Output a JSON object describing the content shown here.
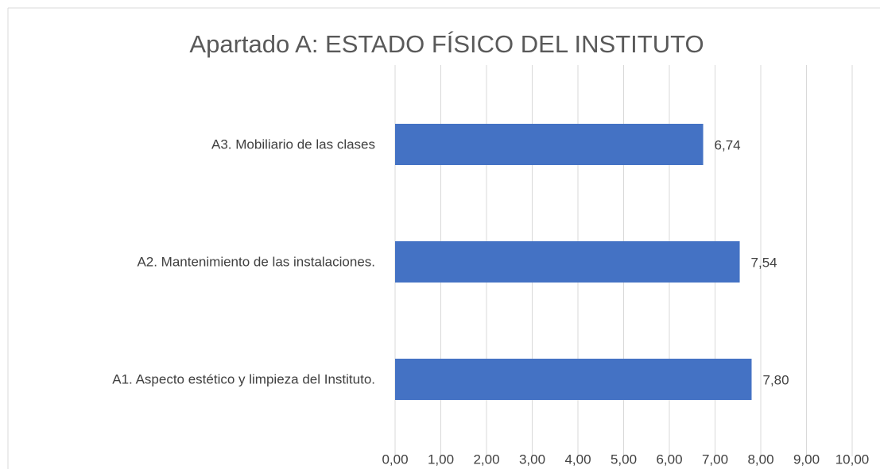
{
  "chart_data": {
    "type": "bar",
    "orientation": "horizontal",
    "title": "Apartado A: ESTADO FÍSICO DEL INSTITUTO",
    "categories": [
      "A3. Mobiliario de las clases",
      "A2. Mantenimiento de las instalaciones.",
      "A1. Aspecto estético y limpieza del Instituto."
    ],
    "values": [
      6.74,
      7.54,
      7.8
    ],
    "value_labels": [
      "6,74",
      "7,54",
      "7,80"
    ],
    "color": "#4472c4",
    "xlim": [
      0,
      10
    ],
    "xticks": [
      {
        "value": 0,
        "label": "0,00"
      },
      {
        "value": 1,
        "label": "1,00"
      },
      {
        "value": 2,
        "label": "2,00"
      },
      {
        "value": 3,
        "label": "3,00"
      },
      {
        "value": 4,
        "label": "4,00"
      },
      {
        "value": 5,
        "label": "5,00"
      },
      {
        "value": 6,
        "label": "6,00"
      },
      {
        "value": 7,
        "label": "7,00"
      },
      {
        "value": 8,
        "label": "8,00"
      },
      {
        "value": 9,
        "label": "9,00"
      },
      {
        "value": 10,
        "label": "10,00"
      }
    ],
    "grid": true
  }
}
